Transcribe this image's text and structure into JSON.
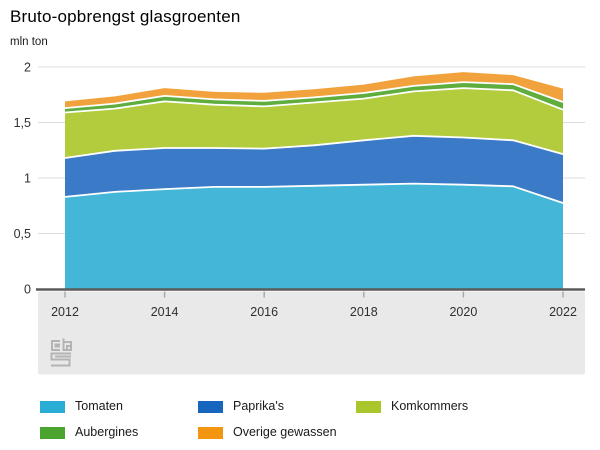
{
  "title": "Bruto-opbrengst glasgroenten",
  "unit": "mln ton",
  "icons": {
    "branding_logo": "cbs-logo"
  },
  "colors": {
    "background": "#ffffff",
    "gridline": "#dcdcdc",
    "zero_axis": "#5a5a5a",
    "axis_band": "#e9e9e9",
    "tick_mark": "#a8a8a8",
    "tick_label": "#303030",
    "logo_gray": "#b4b4b4"
  },
  "chart_data": {
    "type": "area",
    "stacked": true,
    "title": "Bruto-opbrengst glasgroenten",
    "ylabel": "mln ton",
    "xlabel": "",
    "ylim": [
      0,
      2
    ],
    "grid": true,
    "legend_position": "bottom",
    "x": [
      2012,
      2013,
      2014,
      2015,
      2016,
      2017,
      2018,
      2019,
      2020,
      2021,
      2022
    ],
    "x_tick_labels": [
      "2012",
      "2014",
      "2016",
      "2018",
      "2020",
      "2022"
    ],
    "y_ticks": {
      "values": [
        0,
        0.5,
        1,
        1.5,
        2
      ],
      "labels": [
        "0",
        "0,5",
        "1",
        "1,5",
        "2"
      ]
    },
    "series": [
      {
        "name": "Tomaten",
        "color": "#44b7d9",
        "legend_color": "#2aadd4",
        "values": [
          0.83,
          0.875,
          0.9,
          0.92,
          0.92,
          0.93,
          0.94,
          0.95,
          0.94,
          0.925,
          0.775
        ]
      },
      {
        "name": "Paprika's",
        "color": "#3b7ac7",
        "legend_color": "#1766be",
        "values": [
          0.35,
          0.37,
          0.37,
          0.35,
          0.345,
          0.365,
          0.4,
          0.43,
          0.425,
          0.415,
          0.44
        ]
      },
      {
        "name": "Komkommers",
        "color": "#b2cc3e",
        "legend_color": "#a9c72d",
        "values": [
          0.41,
          0.38,
          0.42,
          0.39,
          0.38,
          0.385,
          0.375,
          0.4,
          0.445,
          0.45,
          0.4
        ]
      },
      {
        "name": "Aubergines",
        "color": "#5ead3d",
        "legend_color": "#4aa42e",
        "values": [
          0.04,
          0.045,
          0.05,
          0.048,
          0.05,
          0.046,
          0.051,
          0.05,
          0.054,
          0.055,
          0.07
        ]
      },
      {
        "name": "Overige gewassen",
        "color": "#f2a23c",
        "legend_color": "#f39511",
        "values": [
          0.06,
          0.065,
          0.07,
          0.068,
          0.073,
          0.074,
          0.075,
          0.085,
          0.09,
          0.082,
          0.12
        ]
      }
    ],
    "legend_order_rows": [
      [
        "Tomaten",
        "Paprika's",
        "Komkommers"
      ],
      [
        "Aubergines",
        "Overige gewassen"
      ]
    ]
  }
}
